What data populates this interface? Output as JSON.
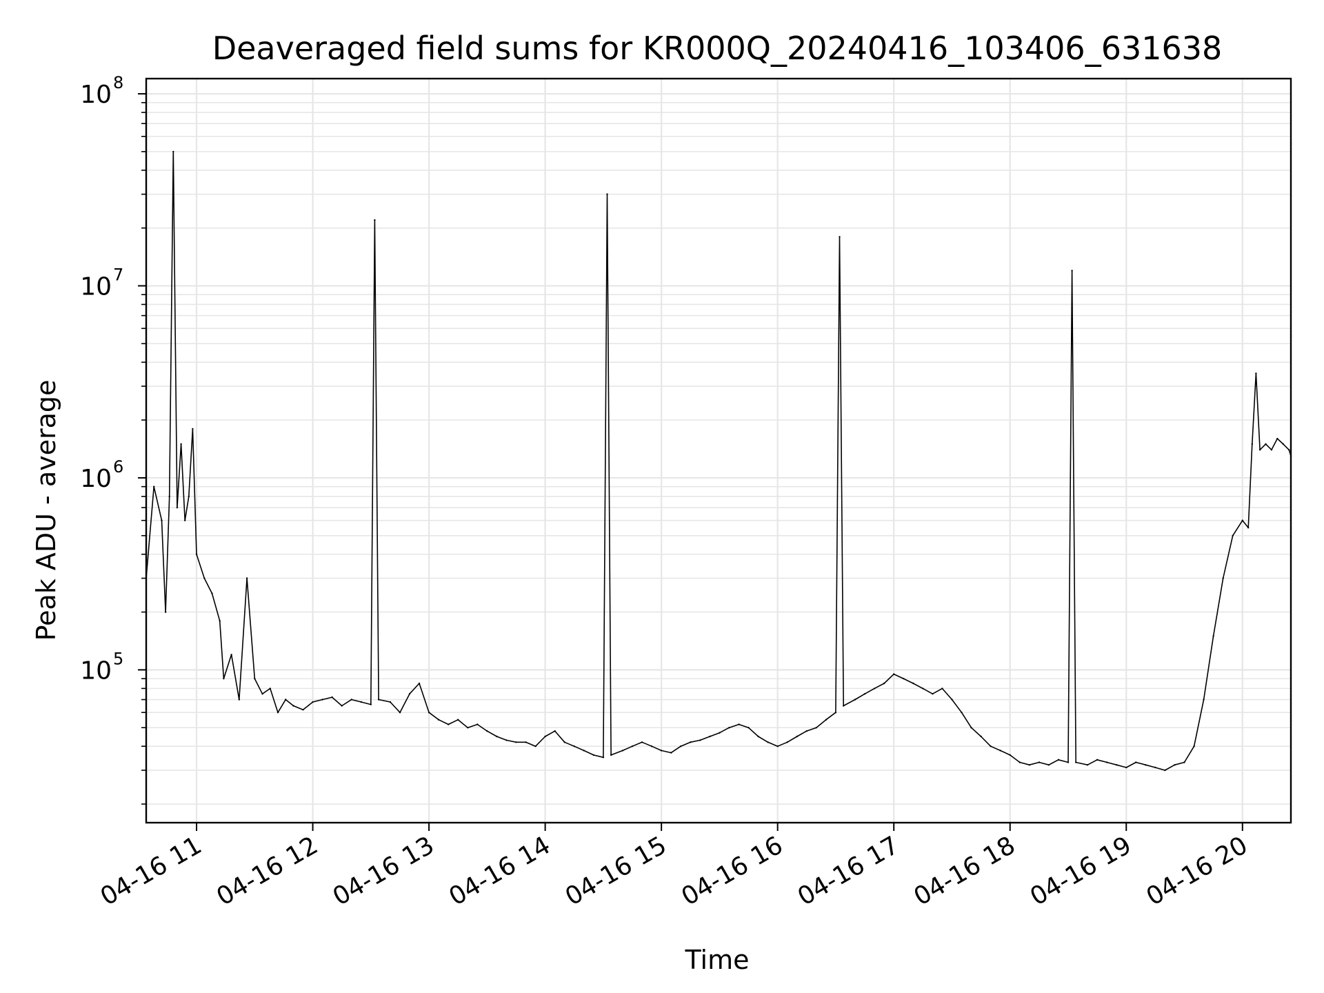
{
  "chart_data": {
    "type": "line",
    "title": "Deaveraged field sums for KR000Q_20240416_103406_631638",
    "xlabel": "Time",
    "ylabel": "Peak ADU - average",
    "yscale": "log",
    "grid": true,
    "line_color": "#000000",
    "grid_color": "#e6e6e6",
    "xlim": [
      "04-16 10:34",
      "04-16 20:25"
    ],
    "ylim": [
      16000,
      120000000
    ],
    "x_ticks": [
      {
        "label": "04-16 11",
        "value": "11:00"
      },
      {
        "label": "04-16 12",
        "value": "12:00"
      },
      {
        "label": "04-16 13",
        "value": "13:00"
      },
      {
        "label": "04-16 14",
        "value": "14:00"
      },
      {
        "label": "04-16 15",
        "value": "15:00"
      },
      {
        "label": "04-16 16",
        "value": "16:00"
      },
      {
        "label": "04-16 17",
        "value": "17:00"
      },
      {
        "label": "04-16 18",
        "value": "18:00"
      },
      {
        "label": "04-16 19",
        "value": "19:00"
      },
      {
        "label": "04-16 20",
        "value": "20:00"
      }
    ],
    "y_ticks": [
      {
        "base": "10",
        "exp": "5",
        "value": 100000
      },
      {
        "base": "10",
        "exp": "6",
        "value": 1000000
      },
      {
        "base": "10",
        "exp": "7",
        "value": 10000000
      },
      {
        "base": "10",
        "exp": "8",
        "value": 100000000
      }
    ],
    "series": [
      {
        "points": [
          [
            "10:34",
            300000
          ],
          [
            "10:38",
            900000
          ],
          [
            "10:42",
            600000
          ],
          [
            "10:44",
            200000
          ],
          [
            "10:46",
            800000
          ],
          [
            "10:48",
            50000000
          ],
          [
            "10:50",
            700000
          ],
          [
            "10:52",
            1500000
          ],
          [
            "10:54",
            600000
          ],
          [
            "10:56",
            800000
          ],
          [
            "10:58",
            1800000
          ],
          [
            "11:00",
            400000
          ],
          [
            "11:04",
            300000
          ],
          [
            "11:08",
            250000
          ],
          [
            "11:12",
            180000
          ],
          [
            "11:14",
            90000
          ],
          [
            "11:18",
            120000
          ],
          [
            "11:22",
            70000
          ],
          [
            "11:26",
            300000
          ],
          [
            "11:30",
            90000
          ],
          [
            "11:34",
            75000
          ],
          [
            "11:38",
            80000
          ],
          [
            "11:42",
            60000
          ],
          [
            "11:46",
            70000
          ],
          [
            "11:50",
            65000
          ],
          [
            "11:55",
            62000
          ],
          [
            "12:00",
            68000
          ],
          [
            "12:05",
            70000
          ],
          [
            "12:10",
            72000
          ],
          [
            "12:15",
            65000
          ],
          [
            "12:20",
            70000
          ],
          [
            "12:25",
            68000
          ],
          [
            "12:30",
            66000
          ],
          [
            "12:32",
            22000000
          ],
          [
            "12:34",
            70000
          ],
          [
            "12:40",
            68000
          ],
          [
            "12:45",
            60000
          ],
          [
            "12:50",
            75000
          ],
          [
            "12:55",
            85000
          ],
          [
            "13:00",
            60000
          ],
          [
            "13:05",
            55000
          ],
          [
            "13:10",
            52000
          ],
          [
            "13:15",
            55000
          ],
          [
            "13:20",
            50000
          ],
          [
            "13:25",
            52000
          ],
          [
            "13:30",
            48000
          ],
          [
            "13:35",
            45000
          ],
          [
            "13:40",
            43000
          ],
          [
            "13:45",
            42000
          ],
          [
            "13:50",
            42000
          ],
          [
            "13:55",
            40000
          ],
          [
            "14:00",
            45000
          ],
          [
            "14:05",
            48000
          ],
          [
            "14:10",
            42000
          ],
          [
            "14:15",
            40000
          ],
          [
            "14:20",
            38000
          ],
          [
            "14:25",
            36000
          ],
          [
            "14:30",
            35000
          ],
          [
            "14:32",
            30000000
          ],
          [
            "14:34",
            36000
          ],
          [
            "14:40",
            38000
          ],
          [
            "14:45",
            40000
          ],
          [
            "14:50",
            42000
          ],
          [
            "14:55",
            40000
          ],
          [
            "15:00",
            38000
          ],
          [
            "15:05",
            37000
          ],
          [
            "15:10",
            40000
          ],
          [
            "15:15",
            42000
          ],
          [
            "15:20",
            43000
          ],
          [
            "15:25",
            45000
          ],
          [
            "15:30",
            47000
          ],
          [
            "15:35",
            50000
          ],
          [
            "15:40",
            52000
          ],
          [
            "15:45",
            50000
          ],
          [
            "15:50",
            45000
          ],
          [
            "15:55",
            42000
          ],
          [
            "16:00",
            40000
          ],
          [
            "16:05",
            42000
          ],
          [
            "16:10",
            45000
          ],
          [
            "16:15",
            48000
          ],
          [
            "16:20",
            50000
          ],
          [
            "16:25",
            55000
          ],
          [
            "16:30",
            60000
          ],
          [
            "16:32",
            18000000
          ],
          [
            "16:34",
            65000
          ],
          [
            "16:40",
            70000
          ],
          [
            "16:45",
            75000
          ],
          [
            "16:50",
            80000
          ],
          [
            "16:55",
            85000
          ],
          [
            "17:00",
            95000
          ],
          [
            "17:05",
            90000
          ],
          [
            "17:10",
            85000
          ],
          [
            "17:15",
            80000
          ],
          [
            "17:20",
            75000
          ],
          [
            "17:25",
            80000
          ],
          [
            "17:30",
            70000
          ],
          [
            "17:35",
            60000
          ],
          [
            "17:40",
            50000
          ],
          [
            "17:45",
            45000
          ],
          [
            "17:50",
            40000
          ],
          [
            "17:55",
            38000
          ],
          [
            "18:00",
            36000
          ],
          [
            "18:05",
            33000
          ],
          [
            "18:10",
            32000
          ],
          [
            "18:15",
            33000
          ],
          [
            "18:20",
            32000
          ],
          [
            "18:25",
            34000
          ],
          [
            "18:30",
            33000
          ],
          [
            "18:32",
            12000000
          ],
          [
            "18:34",
            33000
          ],
          [
            "18:40",
            32000
          ],
          [
            "18:45",
            34000
          ],
          [
            "18:50",
            33000
          ],
          [
            "18:55",
            32000
          ],
          [
            "19:00",
            31000
          ],
          [
            "19:05",
            33000
          ],
          [
            "19:10",
            32000
          ],
          [
            "19:15",
            31000
          ],
          [
            "19:20",
            30000
          ],
          [
            "19:25",
            32000
          ],
          [
            "19:30",
            33000
          ],
          [
            "19:35",
            40000
          ],
          [
            "19:40",
            70000
          ],
          [
            "19:45",
            150000
          ],
          [
            "19:50",
            300000
          ],
          [
            "19:55",
            500000
          ],
          [
            "20:00",
            600000
          ],
          [
            "20:03",
            550000
          ],
          [
            "20:05",
            1500000
          ],
          [
            "20:07",
            3500000
          ],
          [
            "20:09",
            1400000
          ],
          [
            "20:12",
            1500000
          ],
          [
            "20:15",
            1400000
          ],
          [
            "20:18",
            1600000
          ],
          [
            "20:21",
            1500000
          ],
          [
            "20:24",
            1400000
          ],
          [
            "20:25",
            1300000
          ]
        ]
      }
    ]
  }
}
